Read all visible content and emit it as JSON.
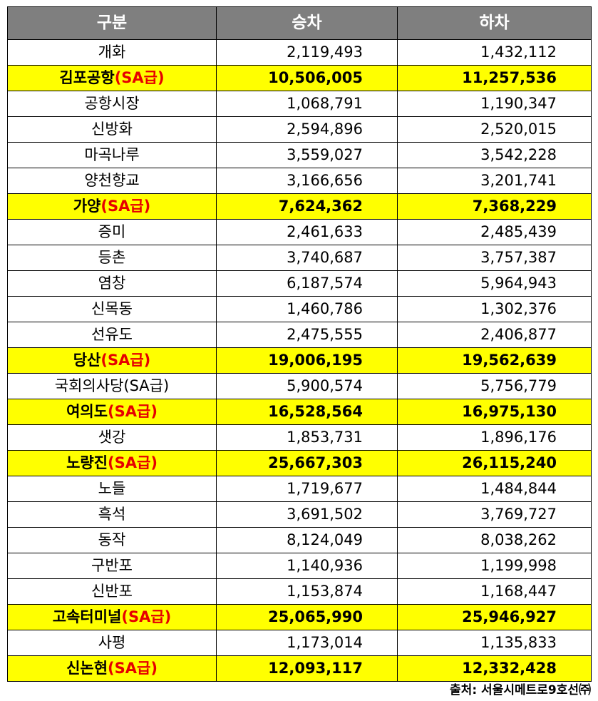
{
  "table": {
    "headers": [
      "구분",
      "승차",
      "하차"
    ],
    "rows": [
      {
        "name": "개화",
        "grade": "",
        "boarding": "2,119,493",
        "alighting": "1,432,112",
        "highlight": false
      },
      {
        "name": "김포공항",
        "grade": "(SA급)",
        "boarding": "10,506,005",
        "alighting": "11,257,536",
        "highlight": true
      },
      {
        "name": "공항시장",
        "grade": "",
        "boarding": "1,068,791",
        "alighting": "1,190,347",
        "highlight": false
      },
      {
        "name": "신방화",
        "grade": "",
        "boarding": "2,594,896",
        "alighting": "2,520,015",
        "highlight": false
      },
      {
        "name": "마곡나루",
        "grade": "",
        "boarding": "3,559,027",
        "alighting": "3,542,228",
        "highlight": false
      },
      {
        "name": "양천향교",
        "grade": "",
        "boarding": "3,166,656",
        "alighting": "3,201,741",
        "highlight": false
      },
      {
        "name": "가양",
        "grade": "(SA급)",
        "boarding": "7,624,362",
        "alighting": "7,368,229",
        "highlight": true
      },
      {
        "name": "증미",
        "grade": "",
        "boarding": "2,461,633",
        "alighting": "2,485,439",
        "highlight": false
      },
      {
        "name": "등촌",
        "grade": "",
        "boarding": "3,740,687",
        "alighting": "3,757,387",
        "highlight": false
      },
      {
        "name": "염창",
        "grade": "",
        "boarding": "6,187,574",
        "alighting": "5,964,943",
        "highlight": false
      },
      {
        "name": "신목동",
        "grade": "",
        "boarding": "1,460,786",
        "alighting": "1,302,376",
        "highlight": false
      },
      {
        "name": "선유도",
        "grade": "",
        "boarding": "2,475,555",
        "alighting": "2,406,877",
        "highlight": false
      },
      {
        "name": "당산",
        "grade": "(SA급)",
        "boarding": "19,006,195",
        "alighting": "19,562,639",
        "highlight": true
      },
      {
        "name": "국회의사당(SA급)",
        "grade": "",
        "boarding": "5,900,574",
        "alighting": "5,756,779",
        "highlight": false
      },
      {
        "name": "여의도",
        "grade": "(SA급)",
        "boarding": "16,528,564",
        "alighting": "16,975,130",
        "highlight": true
      },
      {
        "name": "샛강",
        "grade": "",
        "boarding": "1,853,731",
        "alighting": "1,896,176",
        "highlight": false
      },
      {
        "name": "노량진",
        "grade": "(SA급)",
        "boarding": "25,667,303",
        "alighting": "26,115,240",
        "highlight": true
      },
      {
        "name": "노들",
        "grade": "",
        "boarding": "1,719,677",
        "alighting": "1,484,844",
        "highlight": false
      },
      {
        "name": "흑석",
        "grade": "",
        "boarding": "3,691,502",
        "alighting": "3,769,727",
        "highlight": false
      },
      {
        "name": "동작",
        "grade": "",
        "boarding": "8,124,049",
        "alighting": "8,038,262",
        "highlight": false
      },
      {
        "name": "구반포",
        "grade": "",
        "boarding": "1,140,936",
        "alighting": "1,199,998",
        "highlight": false
      },
      {
        "name": "신반포",
        "grade": "",
        "boarding": "1,153,874",
        "alighting": "1,168,447",
        "highlight": false
      },
      {
        "name": "고속터미널",
        "grade": "(SA급)",
        "boarding": "25,065,990",
        "alighting": "25,946,927",
        "highlight": true
      },
      {
        "name": "사평",
        "grade": "",
        "boarding": "1,173,014",
        "alighting": "1,135,833",
        "highlight": false
      },
      {
        "name": "신논현",
        "grade": "(SA급)",
        "boarding": "12,093,117",
        "alighting": "12,332,428",
        "highlight": true
      }
    ]
  },
  "source": "출처: 서울시메트로9호선㈜",
  "colors": {
    "header_bg": "#7f7f7f",
    "highlight_bg": "#ffff00",
    "grade_text": "#e60000"
  }
}
